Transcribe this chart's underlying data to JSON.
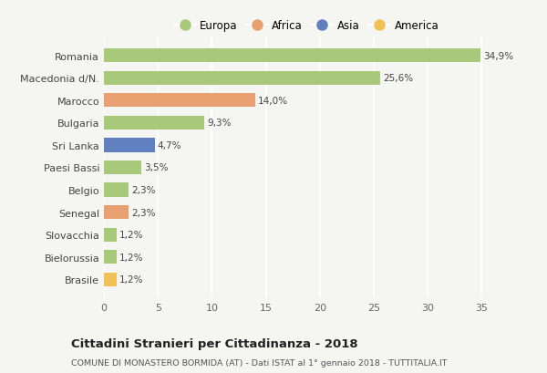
{
  "categories": [
    "Brasile",
    "Bielorussia",
    "Slovacchia",
    "Senegal",
    "Belgio",
    "Paesi Bassi",
    "Sri Lanka",
    "Bulgaria",
    "Marocco",
    "Macedonia d/N.",
    "Romania"
  ],
  "values": [
    1.2,
    1.2,
    1.2,
    2.3,
    2.3,
    3.5,
    4.7,
    9.3,
    14.0,
    25.6,
    34.9
  ],
  "labels": [
    "1,2%",
    "1,2%",
    "1,2%",
    "2,3%",
    "2,3%",
    "3,5%",
    "4,7%",
    "9,3%",
    "14,0%",
    "25,6%",
    "34,9%"
  ],
  "colors": [
    "#f2c155",
    "#a8c87a",
    "#a8c87a",
    "#e8a070",
    "#a8c87a",
    "#a8c87a",
    "#6080c0",
    "#a8c87a",
    "#e8a070",
    "#a8c87a",
    "#a8c87a"
  ],
  "legend": [
    {
      "label": "Europa",
      "color": "#a8c87a"
    },
    {
      "label": "Africa",
      "color": "#e8a070"
    },
    {
      "label": "Asia",
      "color": "#6080c0"
    },
    {
      "label": "America",
      "color": "#f2c155"
    }
  ],
  "xlim": [
    0,
    37.5
  ],
  "xticks": [
    0,
    5,
    10,
    15,
    20,
    25,
    30,
    35
  ],
  "title": "Cittadini Stranieri per Cittadinanza - 2018",
  "subtitle": "COMUNE DI MONASTERO BORMIDA (AT) - Dati ISTAT al 1° gennaio 2018 - TUTTITALIA.IT",
  "bg_color": "#f5f5f2",
  "grid_color": "#ffffff",
  "bar_height": 0.62
}
